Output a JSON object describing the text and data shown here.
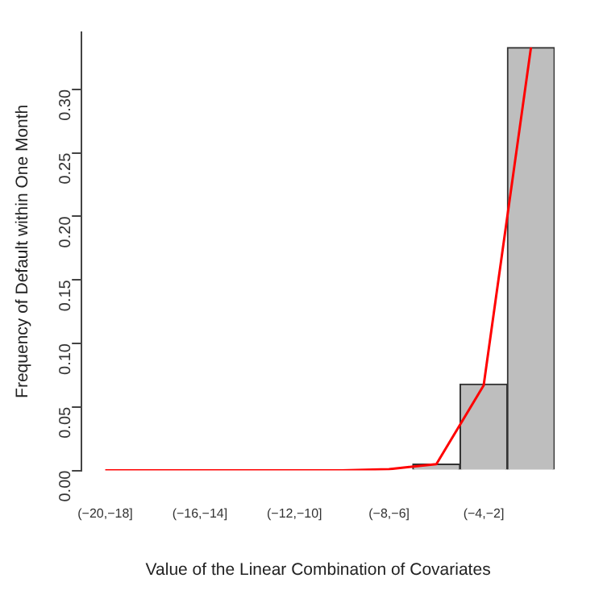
{
  "chart_data": {
    "type": "bar",
    "xlabel": "Value of the Linear Combination of Covariates",
    "ylabel": "Frequency of Default within One Month",
    "categories": [
      "(−20,−18]",
      null,
      "(−16,−14]",
      null,
      "(−12,−10]",
      null,
      "(−8,−6]",
      null,
      "(−4,−2]",
      null
    ],
    "series": [
      {
        "color": "#bebebe",
        "values": [
          0,
          0,
          0,
          0,
          0,
          0,
          0,
          0.005,
          0.068,
          0.333
        ]
      },
      {
        "type": "line",
        "color": "#ff0000",
        "values": [
          0,
          0,
          0,
          0,
          0,
          0,
          0.001,
          0.005,
          0.067,
          0.333
        ]
      }
    ],
    "ylim": [
      0,
      0.345
    ],
    "yticks": [
      {
        "value": 0,
        "label": "0.00"
      },
      {
        "value": 0.05,
        "label": "0.05"
      },
      {
        "value": 0.1,
        "label": "0.10"
      },
      {
        "value": 0.15,
        "label": "0.15"
      },
      {
        "value": 0.2,
        "label": "0.20"
      },
      {
        "value": 0.25,
        "label": "0.25"
      },
      {
        "value": 0.3,
        "label": "0.30"
      }
    ],
    "grid": false,
    "legend": false,
    "marker": "none",
    "line_style": "solid"
  }
}
